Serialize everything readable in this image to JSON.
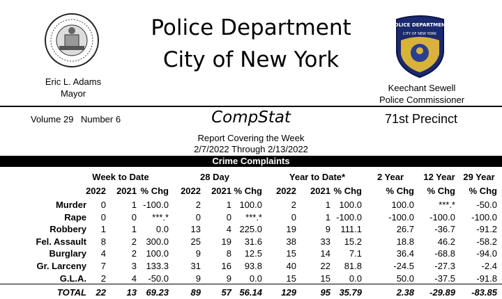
{
  "header": {
    "title_line1": "Police Department",
    "title_line2": "City of New York",
    "mayor_name": "Eric L. Adams",
    "mayor_title": "Mayor",
    "commissioner_name": "Keechant Sewell",
    "commissioner_title": "Police Commissioner",
    "patch_text_top": "POLICE DEPARTMENT",
    "patch_text_bottom": "CITY OF NEW YORK"
  },
  "meta": {
    "volume": "Volume 29",
    "number": "Number  6",
    "compstat": "CompStat",
    "precinct": "71st Precinct",
    "report_covering": "Report Covering the Week",
    "date_range": "2/7/2022  Through  2/13/2022"
  },
  "section_title": "Crime Complaints",
  "groups": [
    "Week to Date",
    "28 Day",
    "Year to Date*",
    "2 Year",
    "12 Year",
    "29 Year"
  ],
  "subheaders": [
    "2022",
    "2021",
    "% Chg",
    "2022",
    "2021",
    "% Chg",
    "2022",
    "2021",
    "% Chg",
    "% Chg",
    "% Chg",
    "% Chg"
  ],
  "rows": [
    {
      "label": "Murder",
      "values": [
        "0",
        "1",
        "-100.0",
        "2",
        "1",
        "100.0",
        "2",
        "1",
        "100.0",
        "100.0",
        "***.*",
        "-50.0"
      ]
    },
    {
      "label": "Rape",
      "values": [
        "0",
        "0",
        "***.*",
        "0",
        "0",
        "***.*",
        "0",
        "1",
        "-100.0",
        "-100.0",
        "-100.0",
        "-100.0"
      ]
    },
    {
      "label": "Robbery",
      "values": [
        "1",
        "1",
        "0.0",
        "13",
        "4",
        "225.0",
        "19",
        "9",
        "111.1",
        "26.7",
        "-36.7",
        "-91.2"
      ]
    },
    {
      "label": "Fel. Assault",
      "values": [
        "8",
        "2",
        "300.0",
        "25",
        "19",
        "31.6",
        "38",
        "33",
        "15.2",
        "18.8",
        "46.2",
        "-58.2"
      ]
    },
    {
      "label": "Burglary",
      "values": [
        "4",
        "2",
        "100.0",
        "9",
        "8",
        "12.5",
        "15",
        "14",
        "7.1",
        "36.4",
        "-68.8",
        "-94.0"
      ]
    },
    {
      "label": "Gr. Larceny",
      "values": [
        "7",
        "3",
        "133.3",
        "31",
        "16",
        "93.8",
        "40",
        "22",
        "81.8",
        "-24.5",
        "-27.3",
        "-2.4"
      ]
    },
    {
      "label": "G.L.A.",
      "values": [
        "2",
        "4",
        "-50.0",
        "9",
        "9",
        "0.0",
        "15",
        "15",
        "0.0",
        "50.0",
        "-37.5",
        "-91.8"
      ]
    }
  ],
  "total": {
    "label": "TOTAL",
    "values": [
      "22",
      "13",
      "69.23",
      "89",
      "57",
      "56.14",
      "129",
      "95",
      "35.79",
      "2.38",
      "-29.89",
      "-83.85"
    ]
  }
}
